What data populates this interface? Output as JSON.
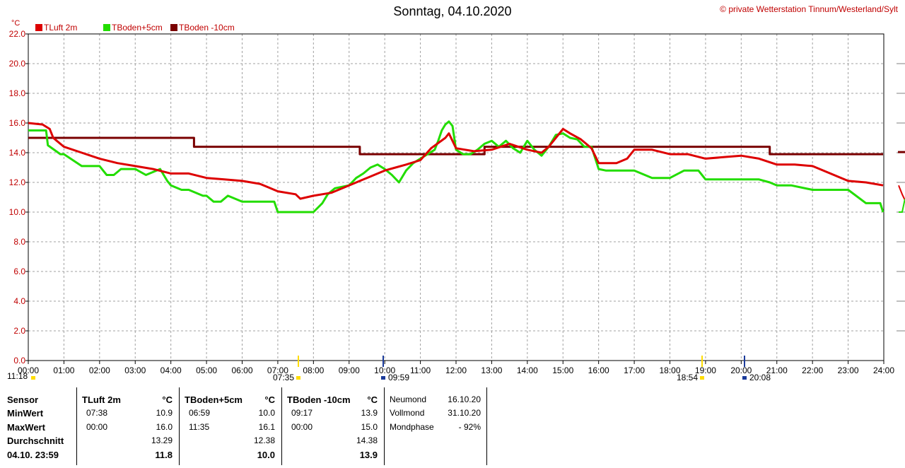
{
  "header": {
    "title": "Sonntag, 04.10.2020",
    "copyright_symbol": "©",
    "copyright": "private Wetterstation Tinnum/Westerland/Sylt",
    "unit": "°C"
  },
  "legend": [
    {
      "label": "TLuft 2m",
      "color": "#dd0000"
    },
    {
      "label": "TBoden+5cm",
      "color": "#22dd00"
    },
    {
      "label": "TBoden -10cm",
      "color": "#7a0000"
    }
  ],
  "chart_data": {
    "type": "line",
    "xlim": [
      0,
      24
    ],
    "ylim": [
      0,
      22
    ],
    "grid": true,
    "x_ticks": [
      "00:00",
      "01:00",
      "02:00",
      "03:00",
      "04:00",
      "05:00",
      "06:00",
      "07:00",
      "08:00",
      "09:00",
      "10:00",
      "11:00",
      "12:00",
      "13:00",
      "14:00",
      "15:00",
      "16:00",
      "17:00",
      "18:00",
      "19:00",
      "20:00",
      "21:00",
      "22:00",
      "23:00",
      "24:00"
    ],
    "y_ticks": [
      "0.0",
      "2.0",
      "4.0",
      "6.0",
      "8.0",
      "10.0",
      "12.0",
      "14.0",
      "16.0",
      "18.0",
      "20.0",
      "22.0"
    ],
    "series": [
      {
        "name": "TLuft 2m",
        "color": "#dd0000",
        "x": [
          0,
          0.4,
          0.6,
          0.7,
          0.8,
          1,
          1.5,
          2,
          2.5,
          3,
          3.5,
          4,
          4.5,
          5,
          5.5,
          6,
          6.5,
          7,
          7.5,
          7.63,
          8,
          8.5,
          9,
          9.5,
          10,
          10.3,
          10.6,
          11,
          11.3,
          11.7,
          11.8,
          12,
          12.5,
          13,
          13.5,
          14,
          14.4,
          14.6,
          14.8,
          15,
          15.2,
          15.5,
          15.8,
          16,
          16.5,
          16.8,
          17,
          17.5,
          18,
          18.5,
          19,
          19.5,
          20,
          20.5,
          21,
          21.5,
          22,
          22.5,
          23,
          23.5,
          23.98
        ],
        "y": [
          16.0,
          15.9,
          15.6,
          15.0,
          14.8,
          14.4,
          14.0,
          13.6,
          13.3,
          13.1,
          12.9,
          12.6,
          12.6,
          12.3,
          12.2,
          12.1,
          11.9,
          11.4,
          11.2,
          10.9,
          11.1,
          11.3,
          11.8,
          12.3,
          12.8,
          13.0,
          13.2,
          13.5,
          14.3,
          15.0,
          15.3,
          14.3,
          14.1,
          14.2,
          14.6,
          14.2,
          14.0,
          14.4,
          15.0,
          15.6,
          15.3,
          14.9,
          14.3,
          13.3,
          13.3,
          13.6,
          14.2,
          14.2,
          13.9,
          13.9,
          13.6,
          13.7,
          13.8,
          13.6,
          13.2,
          13.2,
          13.1,
          12.6,
          12.1,
          12.0,
          11.8
        ]
      },
      {
        "name": "TBoden+5cm",
        "color": "#22dd00",
        "x": [
          0,
          0.5,
          0.55,
          0.9,
          1,
          1.5,
          2,
          2.2,
          2.4,
          2.6,
          3,
          3.3,
          3.7,
          3.9,
          4,
          4.3,
          4.5,
          4.9,
          5,
          5.2,
          5.4,
          5.6,
          6,
          6.5,
          6.9,
          7,
          7.5,
          8,
          8.25,
          8.4,
          8.6,
          9,
          9.2,
          9.4,
          9.6,
          9.8,
          10,
          10.2,
          10.4,
          10.6,
          10.8,
          11,
          11.2,
          11.4,
          11.5,
          11.6,
          11.7,
          11.8,
          11.9,
          12,
          12.2,
          12.4,
          12.6,
          12.8,
          13,
          13.2,
          13.4,
          13.6,
          13.8,
          14,
          14.2,
          14.4,
          14.6,
          14.8,
          15,
          15.2,
          15.4,
          15.6,
          15.8,
          16,
          16.2,
          16.4,
          16.6,
          17,
          17.5,
          18,
          18.4,
          18.8,
          19,
          19.5,
          20,
          20.5,
          20.8,
          21,
          21.4,
          22,
          22.5,
          23,
          23.5,
          23.9,
          23.98
        ],
        "y": [
          15.5,
          15.5,
          14.5,
          13.9,
          13.9,
          13.1,
          13.1,
          12.5,
          12.5,
          12.9,
          12.9,
          12.5,
          12.9,
          12.1,
          11.8,
          11.5,
          11.5,
          11.1,
          11.1,
          10.7,
          10.7,
          11.1,
          10.7,
          10.7,
          10.7,
          10.0,
          10.0,
          10.0,
          10.6,
          11.2,
          11.6,
          11.8,
          12.3,
          12.6,
          13.0,
          13.2,
          12.9,
          12.5,
          12.0,
          12.8,
          13.3,
          13.6,
          13.9,
          14.2,
          14.8,
          15.5,
          15.9,
          16.1,
          15.8,
          14.2,
          13.9,
          13.9,
          14.2,
          14.6,
          14.8,
          14.4,
          14.8,
          14.3,
          14.0,
          14.8,
          14.2,
          13.8,
          14.4,
          15.2,
          15.3,
          15.0,
          14.9,
          14.4,
          14.4,
          12.9,
          12.8,
          12.8,
          12.8,
          12.8,
          12.3,
          12.3,
          12.8,
          12.8,
          12.2,
          12.2,
          12.2,
          12.2,
          12.0,
          11.8,
          11.8,
          11.5,
          11.5,
          11.5,
          10.6,
          10.6,
          10.0
        ]
      },
      {
        "name": "TBoden -10cm",
        "color": "#7a0000",
        "x": [
          0,
          4.65,
          4.65,
          9.3,
          9.3,
          12.8,
          12.8,
          20.8,
          20.8,
          23.98
        ],
        "y": [
          15.0,
          15.0,
          14.4,
          14.4,
          13.9,
          13.9,
          14.4,
          14.4,
          13.9,
          13.9
        ]
      }
    ]
  },
  "time_markers": [
    {
      "label": "11:18",
      "color": "#ffdd00"
    },
    {
      "label": "07:35",
      "color": "#ffdd00"
    },
    {
      "label": "09:59",
      "color": "#1a3a9a"
    },
    {
      "label": "18:54",
      "color": "#ffdd00"
    },
    {
      "label": "20:08",
      "color": "#1a3a9a"
    }
  ],
  "stats": {
    "labels": {
      "sensor": "Sensor",
      "min": "MinWert",
      "max": "MaxWert",
      "avg": "Durchschnitt",
      "current": "04.10. 23:59"
    },
    "columns": [
      {
        "name": "TLuft 2m",
        "unit": "°C",
        "min_time": "07:38",
        "min": "10.9",
        "max_time": "00:00",
        "max": "16.0",
        "avg": "13.29",
        "current": "11.8"
      },
      {
        "name": "TBoden+5cm",
        "unit": "°C",
        "min_time": "06:59",
        "min": "10.0",
        "max_time": "11:35",
        "max": "16.1",
        "avg": "12.38",
        "current": "10.0"
      },
      {
        "name": "TBoden -10cm",
        "unit": "°C",
        "min_time": "09:17",
        "min": "13.9",
        "max_time": "00:00",
        "max": "15.0",
        "avg": "14.38",
        "current": "13.9"
      }
    ],
    "moon": [
      {
        "label": "Neumond",
        "value": "16.10.20"
      },
      {
        "label": "Vollmond",
        "value": "31.10.20"
      },
      {
        "label": "Mondphase",
        "value": "- 92%"
      }
    ]
  }
}
